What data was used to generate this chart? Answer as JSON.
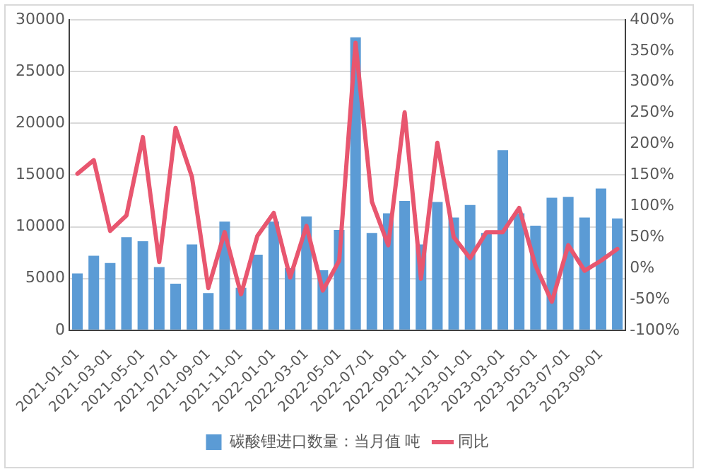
{
  "chart_data": {
    "type": "bar",
    "categories": [
      "2021-01-01",
      null,
      "2021-03-01",
      null,
      "2021-05-01",
      null,
      "2021-07-01",
      null,
      "2021-09-01",
      null,
      "2021-11-01",
      null,
      "2022-01-01",
      null,
      "2022-03-01",
      null,
      "2022-05-01",
      null,
      "2022-07-01",
      null,
      "2022-09-01",
      null,
      "2022-11-01",
      null,
      "2023-01-01",
      null,
      "2023-03-01",
      null,
      "2023-05-01",
      null,
      "2023-07-01",
      null,
      "2023-09-01",
      null
    ],
    "series": [
      {
        "name": "碳酸锂进口数量：当月值 吨",
        "color": "#5b9bd5",
        "values": [
          5500,
          7200,
          6500,
          9000,
          8600,
          6100,
          4500,
          8300,
          3600,
          10500,
          4100,
          7300,
          10500,
          6000,
          11000,
          5800,
          9700,
          28300,
          9400,
          11300,
          12500,
          8300,
          12400,
          10900,
          12100,
          9400,
          17400,
          11300,
          10100,
          12800,
          12900,
          10900,
          13700,
          10800
        ]
      },
      {
        "name": "同比",
        "type": "line",
        "axis": "y2",
        "color": "#e8566f",
        "values": [
          152,
          174,
          60,
          85,
          211,
          10,
          226,
          147,
          -32,
          58,
          -42,
          52,
          89,
          -15,
          68,
          -36,
          12,
          363,
          107,
          37,
          251,
          -17,
          202,
          50,
          16,
          58,
          58,
          97,
          4,
          -54,
          37,
          -4,
          12,
          31
        ]
      }
    ],
    "ylim": [
      0,
      30000
    ],
    "yticks": [
      0,
      5000,
      10000,
      15000,
      20000,
      25000,
      30000
    ],
    "y2lim": [
      -100,
      400
    ],
    "y2ticks": [
      {
        "value": -100,
        "label": "-100%"
      },
      {
        "value": -50,
        "label": "-50%"
      },
      {
        "value": 0,
        "label": "0%"
      },
      {
        "value": 50,
        "label": "50%"
      },
      {
        "value": 100,
        "label": "100%"
      },
      {
        "value": 150,
        "label": "150%"
      },
      {
        "value": 200,
        "label": "200%"
      },
      {
        "value": 250,
        "label": "250%"
      },
      {
        "value": 300,
        "label": "300%"
      },
      {
        "value": 350,
        "label": "350%"
      },
      {
        "value": 400,
        "label": "400%"
      }
    ],
    "grid": "y",
    "legend": "bottom",
    "marker": "none",
    "line_style": "solid"
  }
}
